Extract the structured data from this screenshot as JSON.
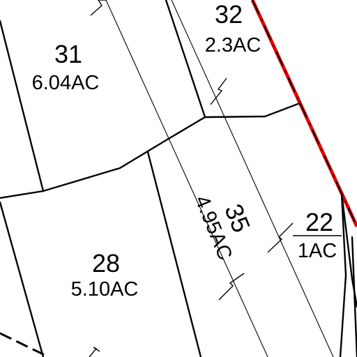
{
  "map": {
    "parcels": [
      {
        "id": "31",
        "area": "6.04AC"
      },
      {
        "id": "32",
        "area": "2.3AC"
      },
      {
        "id": "28",
        "area": "5.10AC"
      },
      {
        "id": "35",
        "area": "4.95AC"
      },
      {
        "id": "22",
        "area": "1AC"
      }
    ],
    "colors": {
      "lot_line": "#000000",
      "boundary_red": "#e00000",
      "boundary_dash": "#000000",
      "background": "#ffffff"
    }
  }
}
